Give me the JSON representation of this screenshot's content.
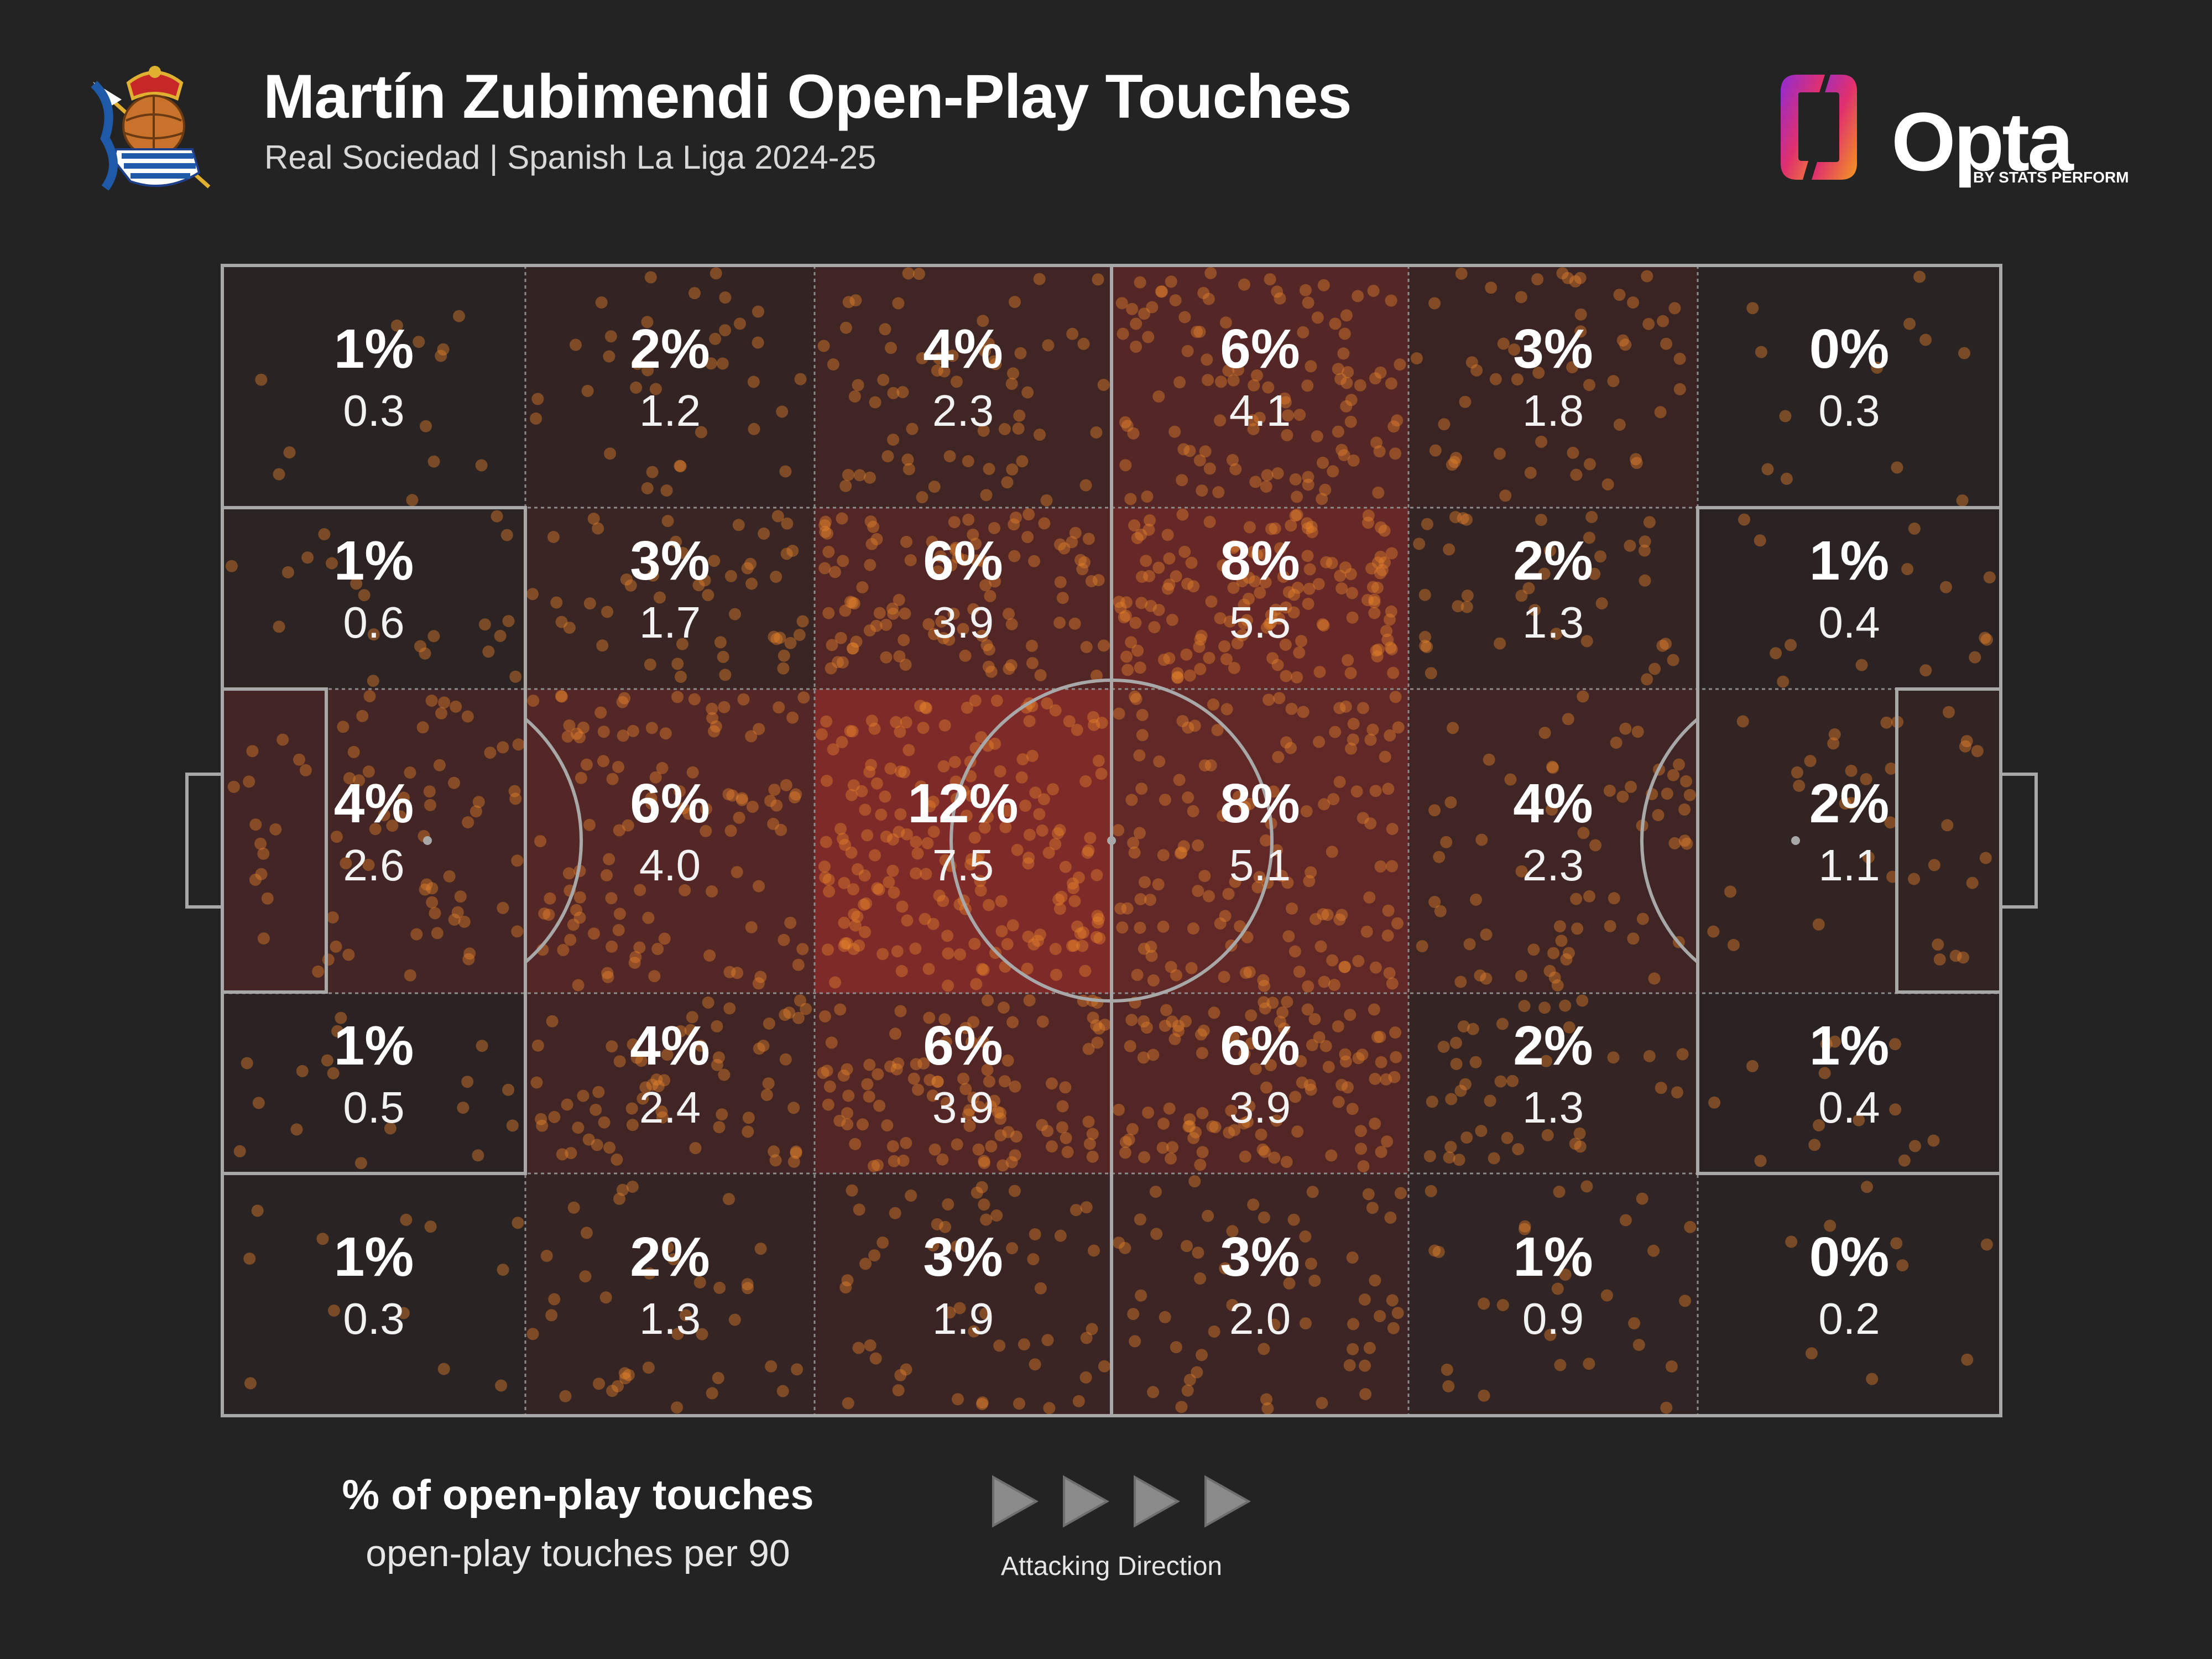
{
  "header": {
    "title": "Martín Zubimendi Open-Play Touches",
    "subtitle": "Real Sociedad | Spanish La Liga 2024-25"
  },
  "branding": {
    "opta_word": "Opta",
    "opta_by": "BY STATS PERFORM"
  },
  "legend": {
    "pct_label": "% of open-play touches",
    "value_label": "open-play touches per 90",
    "direction_label": "Attacking Direction"
  },
  "colors": {
    "background": "#232323",
    "pitch_lines": "#9a9a9a",
    "heat_base": "#c0302c",
    "dots": "#e8822a"
  },
  "chart_data": {
    "type": "heatmap",
    "title": "Martín Zubimendi Open-Play Touches",
    "subtitle": "Real Sociedad | Spanish La Liga 2024-25",
    "columns": 6,
    "rows": 5,
    "cells": [
      [
        {
          "pct": "1%",
          "value": "0.3"
        },
        {
          "pct": "2%",
          "value": "1.2"
        },
        {
          "pct": "4%",
          "value": "2.3"
        },
        {
          "pct": "6%",
          "value": "4.1"
        },
        {
          "pct": "3%",
          "value": "1.8"
        },
        {
          "pct": "0%",
          "value": "0.3"
        }
      ],
      [
        {
          "pct": "1%",
          "value": "0.6"
        },
        {
          "pct": "3%",
          "value": "1.7"
        },
        {
          "pct": "6%",
          "value": "3.9"
        },
        {
          "pct": "8%",
          "value": "5.5"
        },
        {
          "pct": "2%",
          "value": "1.3"
        },
        {
          "pct": "1%",
          "value": "0.4"
        }
      ],
      [
        {
          "pct": "4%",
          "value": "2.6"
        },
        {
          "pct": "6%",
          "value": "4.0"
        },
        {
          "pct": "12%",
          "value": "7.5"
        },
        {
          "pct": "8%",
          "value": "5.1"
        },
        {
          "pct": "4%",
          "value": "2.3"
        },
        {
          "pct": "2%",
          "value": "1.1"
        }
      ],
      [
        {
          "pct": "1%",
          "value": "0.5"
        },
        {
          "pct": "4%",
          "value": "2.4"
        },
        {
          "pct": "6%",
          "value": "3.9"
        },
        {
          "pct": "6%",
          "value": "3.9"
        },
        {
          "pct": "2%",
          "value": "1.3"
        },
        {
          "pct": "1%",
          "value": "0.4"
        }
      ],
      [
        {
          "pct": "1%",
          "value": "0.3"
        },
        {
          "pct": "2%",
          "value": "1.3"
        },
        {
          "pct": "3%",
          "value": "1.9"
        },
        {
          "pct": "3%",
          "value": "2.0"
        },
        {
          "pct": "1%",
          "value": "0.9"
        },
        {
          "pct": "0%",
          "value": "0.2"
        }
      ]
    ],
    "legend": [
      "% of open-play touches",
      "open-play touches per 90"
    ],
    "attacking_direction": "left-to-right"
  }
}
